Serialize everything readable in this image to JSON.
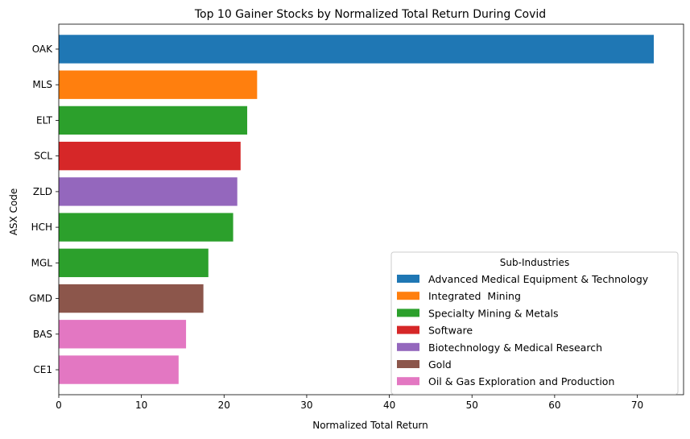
{
  "chart_data": {
    "type": "bar",
    "orientation": "horizontal",
    "title": "Top 10 Gainer Stocks by Normalized Total Return During Covid",
    "xlabel": "Normalized Total Return",
    "ylabel": "ASX Code",
    "xlim": [
      0,
      75.6
    ],
    "xticks": [
      0,
      10,
      20,
      30,
      40,
      50,
      60,
      70
    ],
    "grid": false,
    "legend": {
      "title": "Sub-Industries",
      "placement": "lower-right",
      "entries": [
        {
          "label": "Advanced Medical Equipment & Technology",
          "color": "#1f77b4"
        },
        {
          "label": "Integrated  Mining",
          "color": "#ff7f0e"
        },
        {
          "label": "Specialty Mining & Metals",
          "color": "#2ca02c"
        },
        {
          "label": "Software",
          "color": "#d62728"
        },
        {
          "label": "Biotechnology & Medical Research",
          "color": "#9467bd"
        },
        {
          "label": "Gold",
          "color": "#8c564b"
        },
        {
          "label": "Oil & Gas Exploration and Production",
          "color": "#e377c2"
        }
      ]
    },
    "bars": [
      {
        "category": "OAK",
        "value": 72.0,
        "color": "#1f77b4"
      },
      {
        "category": "MLS",
        "value": 24.0,
        "color": "#ff7f0e"
      },
      {
        "category": "ELT",
        "value": 22.8,
        "color": "#2ca02c"
      },
      {
        "category": "SCL",
        "value": 22.0,
        "color": "#d62728"
      },
      {
        "category": "ZLD",
        "value": 21.6,
        "color": "#9467bd"
      },
      {
        "category": "HCH",
        "value": 21.1,
        "color": "#2ca02c"
      },
      {
        "category": "MGL",
        "value": 18.1,
        "color": "#2ca02c"
      },
      {
        "category": "GMD",
        "value": 17.5,
        "color": "#8c564b"
      },
      {
        "category": "BAS",
        "value": 15.4,
        "color": "#e377c2"
      },
      {
        "category": "CE1",
        "value": 14.5,
        "color": "#e377c2"
      }
    ]
  }
}
